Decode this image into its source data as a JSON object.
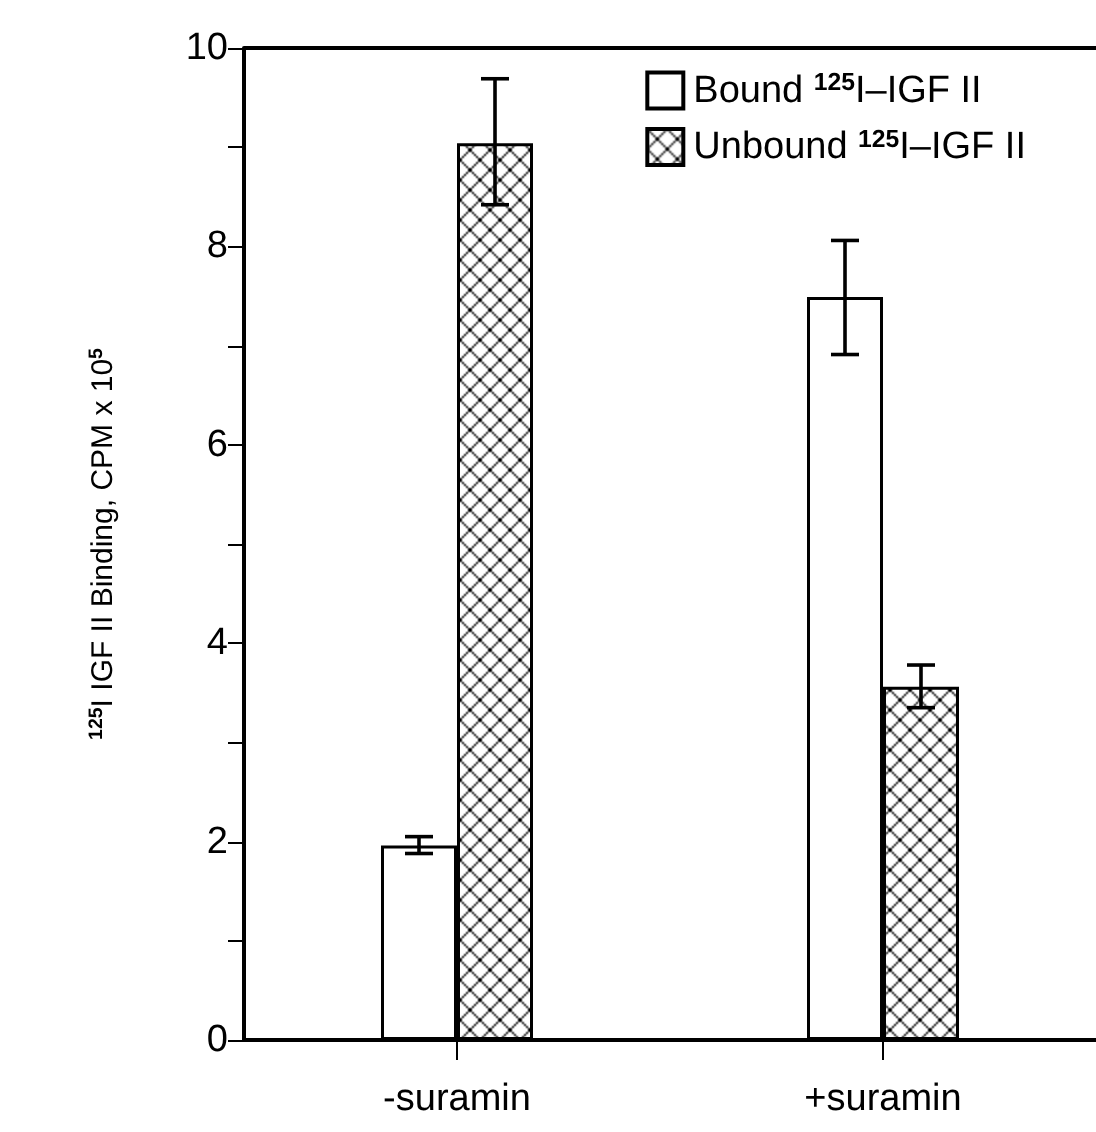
{
  "chart_data": {
    "type": "bar",
    "ylabel": "$^{125}$I IGF II Binding, CPM x 10$^{5}$",
    "categories": [
      "-suramin",
      "+suramin"
    ],
    "series": [
      {
        "name": "Bound $^{125}$I–IGF II",
        "color": "#ffffff",
        "values": [
          1.96,
          7.49
        ],
        "errors": [
          [
            1.88,
            2.05
          ],
          [
            6.91,
            8.06
          ]
        ]
      },
      {
        "name": "Unbound $^{125}$I–IGF II",
        "color": "#000000",
        "values": [
          9.04,
          3.56
        ],
        "errors": [
          [
            8.42,
            9.69
          ],
          [
            3.35,
            3.78
          ]
        ]
      }
    ],
    "ylim": [
      0,
      10
    ],
    "yticks": [
      0,
      {
        "value": 1,
        "label": null
      },
      2,
      {
        "value": 3,
        "label": null
      },
      4,
      {
        "value": 5,
        "label": null
      },
      6,
      {
        "value": 7,
        "label": null
      },
      8,
      {
        "value": 9,
        "label": null
      },
      10
    ],
    "grid": false,
    "legend": "top right"
  }
}
